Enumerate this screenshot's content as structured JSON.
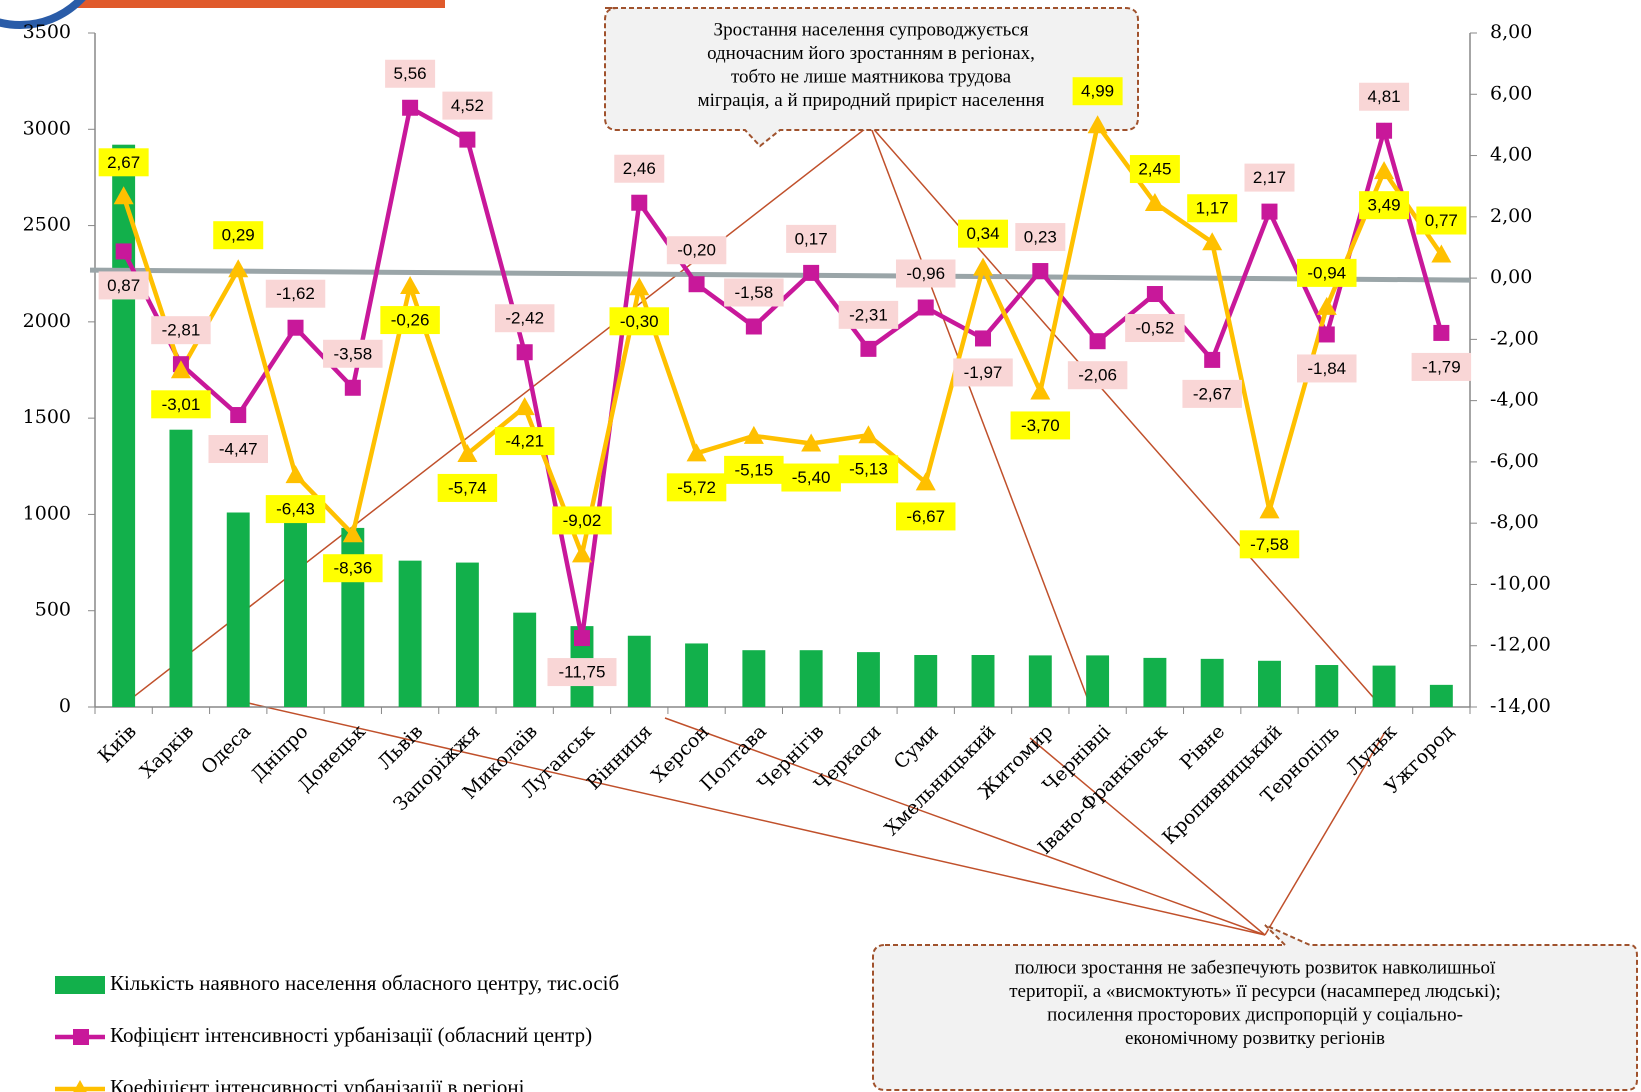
{
  "chart_data": {
    "type": "bar",
    "categories": [
      "Київ",
      "Харків",
      "Одеса",
      "Дніпро",
      "Донецьк",
      "Львів",
      "Запоріжжя",
      "Миколаїв",
      "Луганськ",
      "Вінниця",
      "Херсон",
      "Полтава",
      "Чернігів",
      "Черкаси",
      "Суми",
      "Хмельницький",
      "Житомир",
      "Чернівці",
      "Івано-Франківськ",
      "Рівне",
      "Кропивницький",
      "Тернопіль",
      "Луцьк",
      "Ужгород"
    ],
    "series": [
      {
        "name": "Кількість наявного населення обласного центру, тис.осіб",
        "type": "bar",
        "axis": "y",
        "color": "#12b04b",
        "values": [
          2920,
          1440,
          1010,
          990,
          930,
          760,
          750,
          490,
          420,
          370,
          330,
          295,
          295,
          285,
          270,
          270,
          268,
          268,
          255,
          250,
          240,
          218,
          215,
          115
        ]
      },
      {
        "name": "Кофіцієнт інтенсивності урбанізації (обласний центр)",
        "type": "line",
        "axis": "y2",
        "color": "#c8189a",
        "marker": "square",
        "label_bg": "#f9d6d6",
        "values": [
          0.87,
          -2.81,
          -4.47,
          -1.62,
          -3.58,
          5.56,
          4.52,
          -2.42,
          -11.75,
          2.46,
          -0.2,
          -1.58,
          0.17,
          -2.31,
          -0.96,
          -1.97,
          0.23,
          -2.06,
          -0.52,
          -2.67,
          2.17,
          -1.84,
          4.81,
          -1.79
        ],
        "value_labels": [
          "0,87",
          "-2,81",
          "-4,47",
          "-1,62",
          "-3,58",
          "5,56",
          "4,52",
          "-2,42",
          "-11,75",
          "2,46",
          "-0,20",
          "-1,58",
          "0,17",
          "-2,31",
          "-0,96",
          "-1,97",
          "0,23",
          "-2,06",
          "-0,52",
          "-2,67",
          "2,17",
          "-1,84",
          "4,81",
          "-1,79"
        ]
      },
      {
        "name": "Коефіцієнт інтенсивності урбанізації в регіоні",
        "type": "line",
        "axis": "y2",
        "color": "#ffc000",
        "marker": "triangle",
        "label_bg": "#ffff00",
        "values": [
          2.67,
          -3.01,
          0.29,
          -6.43,
          -8.36,
          -0.26,
          -5.74,
          -4.21,
          -9.02,
          -0.3,
          -5.72,
          -5.15,
          -5.4,
          -5.13,
          -6.67,
          0.34,
          -3.7,
          4.99,
          2.45,
          1.17,
          -7.58,
          -0.94,
          3.49,
          0.77
        ],
        "value_labels": [
          "2,67",
          "-3,01",
          "0,29",
          "-6,43",
          "-8,36",
          "-0,26",
          "-5,74",
          "-4,21",
          "-9,02",
          "-0,30",
          "-5,72",
          "-5,15",
          "-5,40",
          "-5,13",
          "-6,67",
          "0,34",
          "-3,70",
          "4,99",
          "2,45",
          "1,17",
          "-7,58",
          "-0,94",
          "3,49",
          "0,77"
        ]
      }
    ],
    "ylim": [
      0,
      3500
    ],
    "yticks": [
      0,
      500,
      1000,
      1500,
      2000,
      2500,
      3000,
      3500
    ],
    "y2lim": [
      -14,
      8
    ],
    "y2ticks": [
      {
        "value": -14,
        "label": "-14,00"
      },
      {
        "value": -12,
        "label": "-12,00"
      },
      {
        "value": -10,
        "label": "-10,00"
      },
      {
        "value": -8,
        "label": "-8,00"
      },
      {
        "value": -6,
        "label": "-6,00"
      },
      {
        "value": -4,
        "label": "-4,00"
      },
      {
        "value": -2,
        "label": "-2,00"
      },
      {
        "value": 0,
        "label": "0,00"
      },
      {
        "value": 2,
        "label": "2,00"
      },
      {
        "value": 4,
        "label": "4,00"
      },
      {
        "value": 6,
        "label": "6,00"
      },
      {
        "value": 8,
        "label": "8,00"
      }
    ],
    "legend": "bottom-left",
    "annotations": [
      {
        "lines": [
          "Зростання населення супроводжується",
          "одночасним його зростанням в регіонах,",
          "тобто не лише  маятникова трудова",
          "міграція, а й природний приріст населення"
        ]
      },
      {
        "lines": [
          "полюси зростання не забезпечують розвиток навколишньої",
          "території, а «висмоктують» її ресурси (насамперед людські);",
          "посилення просторових диспропорцій у соціально-",
          "економічному розвитку регіонів"
        ]
      }
    ]
  }
}
